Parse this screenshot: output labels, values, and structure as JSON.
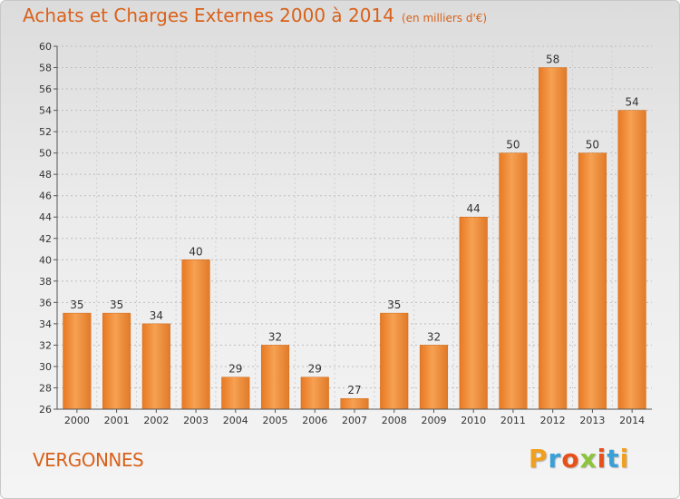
{
  "chart_data": {
    "type": "bar",
    "title": "Achats et Charges Externes 2000 à 2014",
    "unit": "(en milliers d'€)",
    "categories": [
      "2000",
      "2001",
      "2002",
      "2003",
      "2004",
      "2005",
      "2006",
      "2007",
      "2008",
      "2009",
      "2010",
      "2011",
      "2012",
      "2013",
      "2014"
    ],
    "values": [
      35,
      35,
      34,
      40,
      29,
      32,
      29,
      27,
      35,
      32,
      44,
      50,
      58,
      50,
      54
    ],
    "ylim": [
      26,
      60
    ],
    "ytick_step": 2,
    "xlabel": "",
    "ylabel": "",
    "grid": true,
    "bar_color": "#f0882e",
    "axis_color": "#555555"
  },
  "footer": {
    "location": "VERGONNES",
    "logo_letters": [
      "P",
      "r",
      "o",
      "x",
      "i",
      "t",
      "i"
    ],
    "logo_colors": [
      "#f0a020",
      "#3aa0d8",
      "#e8501a",
      "#8cc43c",
      "#e8501a",
      "#3aa0d8",
      "#f0a020"
    ]
  }
}
